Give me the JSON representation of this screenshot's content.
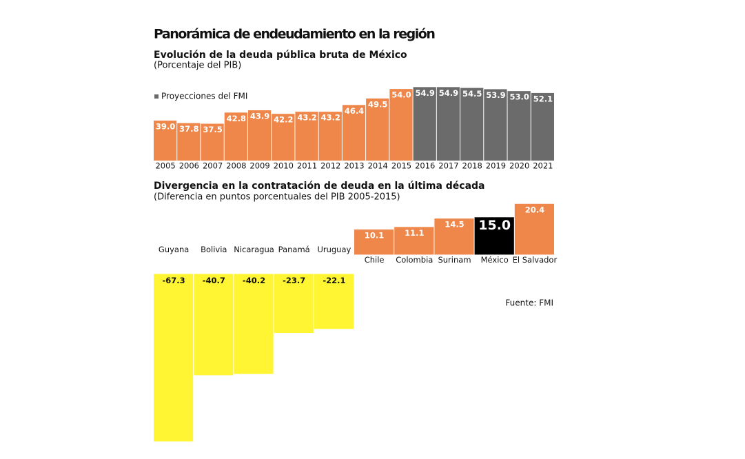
{
  "title": "Panorámica de endeudamiento en la región",
  "chart_data": [
    {
      "type": "bar",
      "title": "Evolución de la deuda pública bruta de México",
      "subtitle": "(Porcentaje del PIB)",
      "categories": [
        "2005",
        "2006",
        "2007",
        "2008",
        "2009",
        "2010",
        "2011",
        "2012",
        "2013",
        "2014",
        "2015",
        "2016",
        "2017",
        "2018",
        "2019",
        "2020",
        "2021"
      ],
      "values": [
        39.0,
        37.8,
        37.5,
        42.8,
        43.9,
        42.2,
        43.2,
        43.2,
        46.4,
        49.5,
        54.0,
        54.9,
        54.9,
        54.5,
        53.9,
        53.0,
        52.1
      ],
      "value_labels": [
        "39.0",
        "37.8",
        "37.5",
        "42.8",
        "43.9",
        "42.2",
        "43.2",
        "43.2",
        "46.4",
        "49.5",
        "54.0",
        "54.9",
        "54.9",
        "54.5",
        "53.9",
        "53.0",
        "52.1"
      ],
      "colors": [
        "#f0874a",
        "#f0874a",
        "#f0874a",
        "#f0874a",
        "#f0874a",
        "#f0874a",
        "#f0874a",
        "#f0874a",
        "#f0874a",
        "#f0874a",
        "#f0874a",
        "#6b6b6b",
        "#6b6b6b",
        "#6b6b6b",
        "#6b6b6b",
        "#6b6b6b",
        "#6b6b6b"
      ],
      "legend": {
        "label": "Proyecciones del FMI",
        "color": "#6b6b6b"
      },
      "ylim": [
        20,
        56
      ]
    },
    {
      "type": "bar",
      "title": "Divergencia en la contratación de deuda en la última década",
      "subtitle": "(Diferencia en puntos porcentuales del PIB 2005-2015)",
      "categories": [
        "Guyana",
        "Bolivia",
        "Nicaragua",
        "Panamá",
        "Uruguay",
        "Chile",
        "Colombia",
        "Surinam",
        "México",
        "El Salvador"
      ],
      "values": [
        -67.3,
        -40.7,
        -40.2,
        -23.7,
        -22.1,
        10.1,
        11.1,
        14.5,
        15.0,
        20.4
      ],
      "value_labels": [
        "-67.3",
        "-40.7",
        "-40.2",
        "-23.7",
        "-22.1",
        "10.1",
        "11.1",
        "14.5",
        "15.0",
        "20.4"
      ],
      "colors": [
        "#fff533",
        "#fff533",
        "#fff533",
        "#fff533",
        "#fff533",
        "#f0874a",
        "#f0874a",
        "#f0874a",
        "#000000",
        "#f0874a"
      ],
      "ylim": [
        -68,
        22
      ],
      "source": "Fuente: FMI"
    }
  ]
}
